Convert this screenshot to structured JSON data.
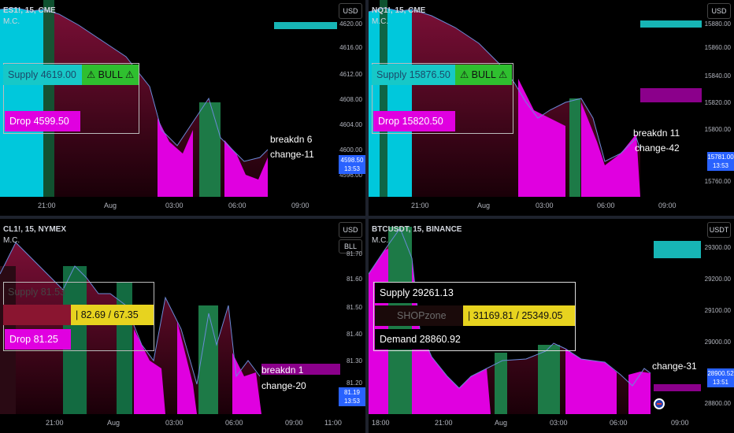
{
  "panes": [
    {
      "id": "p1",
      "symbol": "ES1!, 15, CME",
      "indicator": "M.C.",
      "currency": "USD",
      "unit": "",
      "price_ticks": [
        "4620.00",
        "4616.00",
        "4612.00",
        "4608.00",
        "4604.00",
        "4600.00",
        "4596.00"
      ],
      "time_ticks": [
        "21:00",
        "Aug",
        "03:00",
        "06:00",
        "09:00"
      ],
      "last_price": "4598.50",
      "countdown": "13:53",
      "supply_label": "Supply  4619.00",
      "badge": "⚠ BULL ⚠",
      "drop_label": "Drop  4599.50",
      "breakdown": "breakdn 6",
      "change": "change-11"
    },
    {
      "id": "p2",
      "symbol": "NQ1!, 15, CME",
      "indicator": "M.C.",
      "currency": "USD",
      "unit": "",
      "price_ticks": [
        "15880.00",
        "15860.00",
        "15840.00",
        "15820.00",
        "15800.00",
        "15781.00",
        "15760.00"
      ],
      "time_ticks": [
        "21:00",
        "Aug",
        "03:00",
        "06:00",
        "09:00"
      ],
      "last_price": "15781.00",
      "countdown": "13:53",
      "supply_label": "Supply  15876.50",
      "badge": "⚠ BULL ⚠",
      "drop_label": "Drop  15820.50",
      "breakdown": "breakdn 11",
      "change": "change-42"
    },
    {
      "id": "p3",
      "symbol": "CL1!, 15, NYMEX",
      "indicator": "M.C.",
      "currency": "USD",
      "unit": "BLL",
      "price_ticks": [
        "81.70",
        "81.60",
        "81.50",
        "81.40",
        "81.30",
        "81.20"
      ],
      "time_ticks": [
        "21:00",
        "Aug",
        "03:00",
        "06:00",
        "09:00",
        "11:00"
      ],
      "last_price": "81.19",
      "countdown": "13:53",
      "supply_label": "Supply  81.53",
      "range_label": "|   82.69  /  67.35",
      "drop_label": "Drop  81.25",
      "breakdown": "breakdn 1",
      "change": "change-20"
    },
    {
      "id": "p4",
      "symbol": "BTCUSDT, 15, BINANCE",
      "indicator": "M.C.",
      "currency": "USDT",
      "unit": "",
      "price_ticks": [
        "29300.00",
        "29200.00",
        "29100.00",
        "29000.00",
        "28900.52",
        "28800.00"
      ],
      "time_ticks": [
        "18:00",
        "21:00",
        "Aug",
        "03:00",
        "06:00",
        "09:00"
      ],
      "last_price": "28900.52",
      "countdown": "13:51",
      "supply_label": "Supply  29261.13",
      "shop_label": "SHOPzone",
      "range_label": "|   31169.81  /  25349.05",
      "demand_label": "Demand  28860.92",
      "change": "change-31"
    }
  ],
  "colors": {
    "cyan": "#00bcd4",
    "magenta": "#e000e0",
    "green": "#26a69a",
    "darkred": "#5c0a24",
    "yellow": "#e7d31f",
    "lime": "#3ac43a",
    "purple": "#8b008b",
    "blue": "#2962ff"
  }
}
